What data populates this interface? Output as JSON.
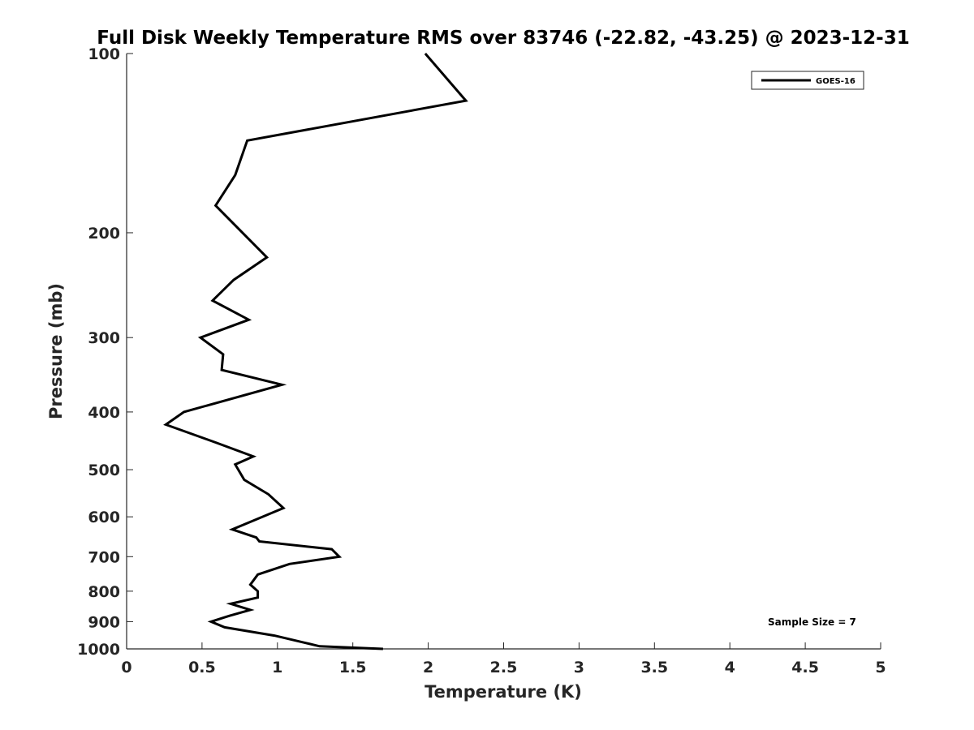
{
  "chart_data": {
    "type": "line",
    "title": "Full Disk Weekly Temperature RMS over 83746 (-22.82, -43.25) @ 2023-12-31",
    "xlabel": "Temperature (K)",
    "ylabel": "Pressure (mb)",
    "xlim": [
      0,
      5
    ],
    "ylim": [
      100,
      1000
    ],
    "y_scale": "log",
    "y_reversed": true,
    "x_ticks": [
      "0",
      "0.5",
      "1",
      "1.5",
      "2",
      "2.5",
      "3",
      "3.5",
      "4",
      "4.5",
      "5"
    ],
    "y_ticks": [
      "100",
      "200",
      "300",
      "400",
      "500",
      "600",
      "700",
      "800",
      "900",
      "1000"
    ],
    "grid": false,
    "legend_position": "top-right",
    "series": [
      {
        "name": "GOES-16",
        "color": "#000000",
        "points": [
          [
            1.98,
            100
          ],
          [
            2.25,
            120
          ],
          [
            0.8,
            140
          ],
          [
            0.72,
            160
          ],
          [
            0.59,
            180
          ],
          [
            0.93,
            220
          ],
          [
            0.71,
            240
          ],
          [
            0.57,
            260
          ],
          [
            0.81,
            280
          ],
          [
            0.49,
            300
          ],
          [
            0.64,
            320
          ],
          [
            0.63,
            340
          ],
          [
            1.03,
            360
          ],
          [
            0.38,
            400
          ],
          [
            0.26,
            420
          ],
          [
            0.59,
            450
          ],
          [
            0.84,
            475
          ],
          [
            0.72,
            490
          ],
          [
            0.78,
            520
          ],
          [
            0.94,
            550
          ],
          [
            1.04,
            580
          ],
          [
            0.9,
            600
          ],
          [
            0.7,
            630
          ],
          [
            0.86,
            650
          ],
          [
            0.88,
            660
          ],
          [
            1.36,
            680
          ],
          [
            1.41,
            700
          ],
          [
            1.08,
            720
          ],
          [
            0.87,
            750
          ],
          [
            0.82,
            780
          ],
          [
            0.87,
            800
          ],
          [
            0.87,
            820
          ],
          [
            0.69,
            840
          ],
          [
            0.82,
            860
          ],
          [
            0.68,
            880
          ],
          [
            0.56,
            900
          ],
          [
            0.65,
            920
          ],
          [
            0.98,
            950
          ],
          [
            1.17,
            975
          ],
          [
            1.28,
            990
          ],
          [
            1.7,
            1000
          ]
        ]
      }
    ],
    "annotation": "Sample Size = 7"
  }
}
